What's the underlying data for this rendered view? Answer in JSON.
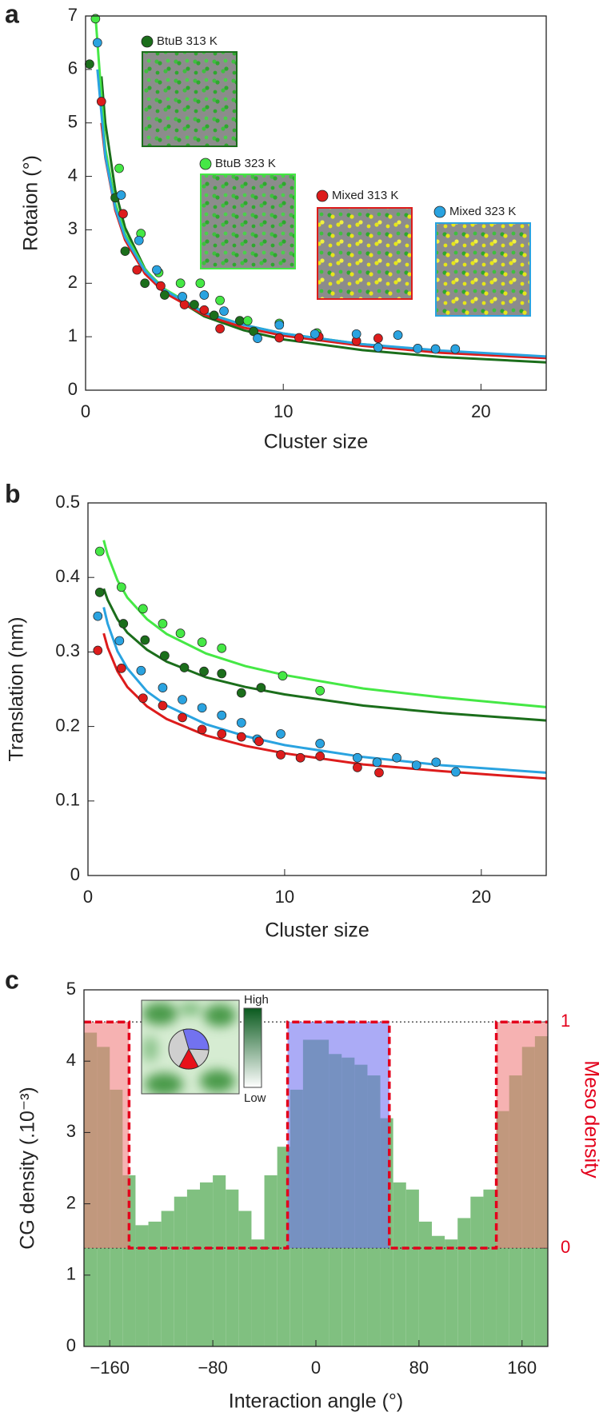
{
  "chart_data": [
    {
      "type": "scatter",
      "panel_label": "a",
      "x_label": "Cluster size",
      "y_label": "Rotaion (°)",
      "xlim": [
        0,
        23.3
      ],
      "xticks": [
        0,
        10,
        20
      ],
      "ylim": [
        0,
        7
      ],
      "yticks": [
        0,
        1,
        2,
        3,
        4,
        5,
        6,
        7
      ],
      "series": [
        {
          "name": "BtuB 313 K",
          "color": "#1b6e1b",
          "x": [
            0.2,
            1.5,
            2.0,
            3.0,
            4.0,
            5.5,
            6.5,
            7.8,
            8.5
          ],
          "values": [
            6.1,
            3.6,
            2.6,
            2.0,
            1.78,
            1.6,
            1.4,
            1.3,
            1.1
          ],
          "fit_x": [
            0.8,
            1,
            1.5,
            2,
            3,
            4,
            6,
            8,
            10,
            14,
            18,
            23.3
          ],
          "fit_values": [
            5.87,
            5.0,
            3.74,
            3.04,
            2.27,
            1.84,
            1.38,
            1.12,
            0.95,
            0.75,
            0.62,
            0.52
          ]
        },
        {
          "name": "BtuB 323 K",
          "color": "#45e845",
          "x": [
            0.5,
            1.7,
            2.8,
            3.7,
            4.8,
            5.8,
            6.8,
            8.2,
            9.8,
            11.7
          ],
          "values": [
            6.95,
            4.15,
            2.93,
            2.2,
            2.0,
            2.0,
            1.68,
            1.3,
            1.25,
            1.07
          ],
          "fit_x": [
            0.5,
            1,
            1.5,
            2,
            3,
            4,
            6,
            8,
            10,
            14,
            18,
            23.3
          ],
          "fit_values": [
            7.0,
            4.52,
            3.5,
            2.92,
            2.26,
            1.89,
            1.46,
            1.22,
            1.06,
            0.86,
            0.73,
            0.62
          ]
        },
        {
          "name": "Mixed 313 K",
          "color": "#dd1c1c",
          "x": [
            0.8,
            1.9,
            2.6,
            3.8,
            5.0,
            6.0,
            6.8,
            9.8,
            10.8,
            11.8,
            13.7,
            14.8
          ],
          "values": [
            5.4,
            3.3,
            2.25,
            1.95,
            1.6,
            1.5,
            1.15,
            0.98,
            0.98,
            1.0,
            0.92,
            0.97
          ],
          "fit_x": [
            0.8,
            1,
            1.5,
            2,
            3,
            4,
            6,
            8,
            10,
            14,
            18,
            23.3
          ],
          "fit_values": [
            5.0,
            4.35,
            3.37,
            2.81,
            2.18,
            1.82,
            1.41,
            1.17,
            1.02,
            0.83,
            0.7,
            0.6
          ]
        },
        {
          "name": "Mixed 323 K",
          "color": "#2aa3e0",
          "x": [
            0.6,
            1.8,
            2.7,
            3.6,
            4.9,
            6.0,
            7.0,
            8.7,
            9.8,
            11.6,
            13.7,
            14.8,
            15.8,
            16.8,
            17.7,
            18.7
          ],
          "values": [
            6.5,
            3.65,
            2.8,
            2.25,
            1.75,
            1.78,
            1.48,
            0.97,
            1.22,
            1.05,
            1.05,
            0.8,
            1.03,
            0.78,
            0.77,
            0.77
          ],
          "fit_x": [
            0.6,
            1,
            1.5,
            2,
            3,
            4,
            6,
            8,
            10,
            14,
            18,
            23.3
          ],
          "fit_values": [
            6.0,
            4.38,
            3.41,
            2.86,
            2.23,
            1.87,
            1.45,
            1.22,
            1.06,
            0.86,
            0.74,
            0.63
          ]
        }
      ]
    },
    {
      "type": "scatter",
      "panel_label": "b",
      "x_label": "Cluster size",
      "y_label": "Translation (nm)",
      "xlim": [
        0,
        23.3
      ],
      "xticks": [
        0,
        10,
        20
      ],
      "ylim": [
        0,
        0.5
      ],
      "yticks": [
        0,
        0.1,
        0.2,
        0.3,
        0.4,
        0.5
      ],
      "series": [
        {
          "color": "#45e845",
          "x": [
            0.6,
            1.7,
            2.8,
            3.8,
            4.7,
            5.8,
            6.8,
            9.9,
            11.8
          ],
          "values": [
            0.435,
            0.387,
            0.358,
            0.338,
            0.325,
            0.313,
            0.305,
            0.268,
            0.248
          ],
          "fit_x": [
            0.8,
            1,
            1.5,
            2,
            3,
            4,
            6,
            8,
            10,
            14,
            18,
            23.3
          ],
          "fit_values": [
            0.45,
            0.43,
            0.396,
            0.373,
            0.344,
            0.324,
            0.298,
            0.281,
            0.269,
            0.251,
            0.239,
            0.226
          ]
        },
        {
          "color": "#1b6e1b",
          "x": [
            0.6,
            1.8,
            2.9,
            3.9,
            4.9,
            5.9,
            6.8,
            7.8,
            8.8
          ],
          "values": [
            0.38,
            0.338,
            0.316,
            0.295,
            0.279,
            0.274,
            0.271,
            0.245,
            0.252
          ],
          "fit_x": [
            0.8,
            1,
            1.5,
            2,
            3,
            4,
            6,
            8,
            10,
            14,
            18,
            23.3
          ],
          "fit_values": [
            0.385,
            0.37,
            0.344,
            0.326,
            0.303,
            0.287,
            0.266,
            0.253,
            0.243,
            0.228,
            0.218,
            0.208
          ]
        },
        {
          "color": "#2aa3e0",
          "x": [
            0.5,
            1.6,
            2.7,
            3.8,
            4.8,
            5.8,
            6.8,
            7.8,
            8.6,
            9.8,
            11.8,
            13.7,
            14.7,
            15.7,
            16.7,
            17.7,
            18.7
          ],
          "values": [
            0.348,
            0.315,
            0.275,
            0.252,
            0.236,
            0.225,
            0.215,
            0.205,
            0.183,
            0.19,
            0.177,
            0.158,
            0.152,
            0.158,
            0.148,
            0.152,
            0.139
          ],
          "fit_x": [
            0.8,
            1,
            1.5,
            2,
            3,
            4,
            6,
            8,
            10,
            14,
            18,
            23.3
          ],
          "fit_values": [
            0.36,
            0.338,
            0.301,
            0.278,
            0.247,
            0.228,
            0.203,
            0.187,
            0.175,
            0.159,
            0.148,
            0.138
          ]
        },
        {
          "color": "#dd1c1c",
          "x": [
            0.5,
            1.7,
            2.8,
            3.8,
            4.8,
            5.8,
            6.8,
            7.8,
            8.7,
            9.8,
            10.8,
            11.8,
            13.7,
            14.8
          ],
          "values": [
            0.302,
            0.278,
            0.238,
            0.228,
            0.212,
            0.196,
            0.19,
            0.186,
            0.18,
            0.162,
            0.158,
            0.16,
            0.145,
            0.138
          ],
          "fit_x": [
            0.8,
            1,
            1.5,
            2,
            3,
            4,
            6,
            8,
            10,
            14,
            18,
            23.3
          ],
          "fit_values": [
            0.325,
            0.306,
            0.274,
            0.253,
            0.227,
            0.21,
            0.188,
            0.174,
            0.164,
            0.149,
            0.14,
            0.13
          ]
        }
      ]
    },
    {
      "type": "histogram",
      "panel_label": "c",
      "x_label": "Interaction angle (°)",
      "y_label": "CG density (.10⁻³)",
      "y2_label": "Meso density",
      "y2_color": "#e3001b",
      "xlim": [
        -180,
        180
      ],
      "xticks": [
        {
          "value": -160,
          "label": "−160"
        },
        {
          "value": -80,
          "label": "−80"
        },
        0,
        80,
        160
      ],
      "ylim": [
        0,
        5
      ],
      "yticks": [
        0,
        1,
        2,
        3,
        4,
        5
      ],
      "y2lim": [
        -0.435,
        1.142
      ],
      "y2ticks": [
        0,
        1
      ],
      "color": "#80c080",
      "bins": [
        -180,
        -170,
        -160,
        -150,
        -140,
        -130,
        -120,
        -110,
        -100,
        -90,
        -80,
        -70,
        -60,
        -50,
        -40,
        -30,
        -20,
        -10,
        0,
        10,
        20,
        30,
        40,
        50,
        60,
        70,
        80,
        90,
        100,
        110,
        120,
        130,
        140,
        150,
        160,
        170,
        180
      ],
      "values": [
        4.4,
        4.2,
        3.6,
        2.4,
        1.7,
        1.75,
        1.9,
        2.1,
        2.2,
        2.3,
        2.4,
        2.2,
        1.9,
        1.5,
        2.4,
        2.8,
        3.6,
        4.3,
        4.3,
        4.1,
        4.05,
        3.95,
        3.8,
        3.2,
        2.3,
        2.2,
        1.75,
        1.55,
        1.5,
        1.8,
        2.1,
        2.2,
        3.3,
        3.8,
        4.2,
        4.35
      ],
      "series": [
        {
          "axis": "y2",
          "color": "#e3001b",
          "fill_colors": [
            "#f07a7a",
            "#6f6ff0",
            "#f07a7a"
          ],
          "x": [
            -180,
            -145,
            -145,
            -22,
            -22,
            57,
            57,
            140,
            140,
            180
          ],
          "values": [
            1,
            1,
            0,
            0,
            1,
            1,
            0,
            0,
            1,
            1
          ]
        }
      ],
      "inset_labels": {
        "high": "High",
        "low": "Low"
      }
    }
  ]
}
